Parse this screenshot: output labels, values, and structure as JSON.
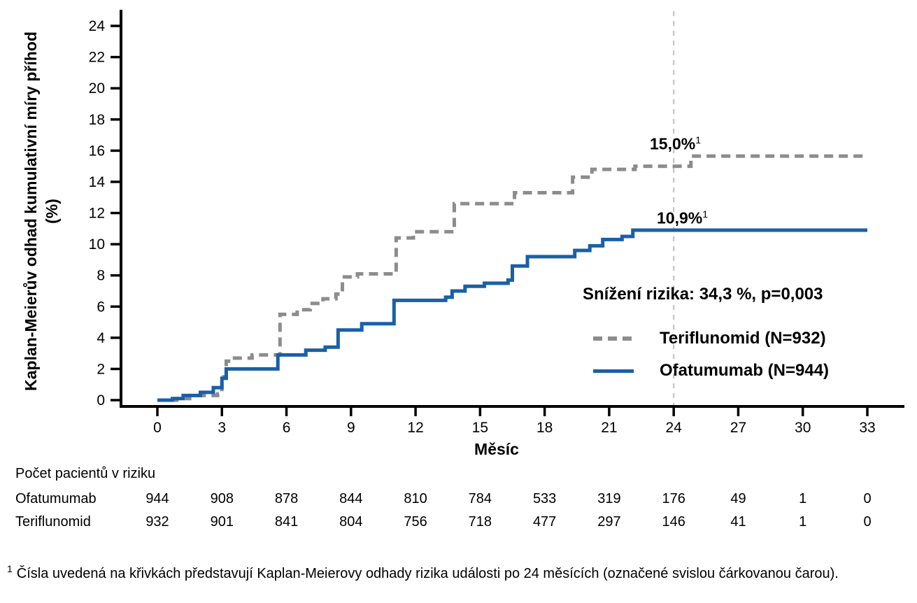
{
  "chart_data": {
    "type": "line",
    "subtype": "kaplan-meier-step",
    "title": "",
    "xlabel": "Měsíc",
    "ylabel_line1": "Kaplan-Meierův odhad kumulativní míry příhod",
    "ylabel_line2": "(%)",
    "x_ticks": [
      0,
      3,
      6,
      9,
      12,
      15,
      18,
      21,
      24,
      27,
      30,
      33
    ],
    "y_ticks": [
      0,
      2,
      4,
      6,
      8,
      10,
      12,
      14,
      16,
      18,
      20,
      22,
      24
    ],
    "xlim": [
      0,
      33
    ],
    "ylim": [
      0,
      24
    ],
    "grid": false,
    "reference_line": {
      "x": 24,
      "style": "dashed",
      "color": "#BFBFBF"
    },
    "series": [
      {
        "name": "Teriflunomid (N=932)",
        "color": "#8C8C8C",
        "dashed": true,
        "km_estimate_at_24_months": "15,0%",
        "points": [
          [
            0,
            0
          ],
          [
            0.9,
            0.1
          ],
          [
            1.5,
            0.3
          ],
          [
            2.8,
            0.4
          ],
          [
            3.0,
            1.5
          ],
          [
            3.2,
            2.5
          ],
          [
            3.5,
            2.7
          ],
          [
            4.4,
            2.9
          ],
          [
            5.7,
            5.5
          ],
          [
            6.5,
            5.8
          ],
          [
            7.1,
            6.2
          ],
          [
            7.7,
            6.5
          ],
          [
            8.3,
            6.8
          ],
          [
            8.6,
            7.9
          ],
          [
            9.3,
            8.1
          ],
          [
            11.1,
            10.4
          ],
          [
            11.9,
            10.8
          ],
          [
            13.8,
            12.6
          ],
          [
            16.6,
            13.3
          ],
          [
            19.3,
            14.3
          ],
          [
            20.2,
            14.8
          ],
          [
            22.2,
            15.0
          ],
          [
            24.8,
            15.65
          ],
          [
            33,
            15.65
          ]
        ]
      },
      {
        "name": "Ofatumumab (N=944)",
        "color": "#1A5FA8",
        "dashed": false,
        "km_estimate_at_24_months": "10,9%",
        "points": [
          [
            0,
            0
          ],
          [
            0.7,
            0.1
          ],
          [
            1.2,
            0.3
          ],
          [
            2.0,
            0.5
          ],
          [
            2.6,
            0.8
          ],
          [
            3.0,
            1.4
          ],
          [
            3.2,
            2.0
          ],
          [
            5.6,
            2.9
          ],
          [
            6.9,
            3.2
          ],
          [
            7.8,
            3.4
          ],
          [
            8.4,
            4.5
          ],
          [
            9.5,
            4.9
          ],
          [
            11.0,
            6.4
          ],
          [
            13.4,
            6.6
          ],
          [
            13.7,
            7.0
          ],
          [
            14.3,
            7.3
          ],
          [
            15.2,
            7.5
          ],
          [
            16.3,
            7.7
          ],
          [
            16.5,
            8.6
          ],
          [
            17.2,
            9.2
          ],
          [
            19.4,
            9.6
          ],
          [
            20.1,
            9.9
          ],
          [
            20.7,
            10.3
          ],
          [
            21.6,
            10.5
          ],
          [
            22.1,
            10.9
          ],
          [
            33,
            10.9
          ]
        ]
      }
    ],
    "legend_position": "right-middle"
  },
  "axis": {
    "x_title": "Měsíc",
    "y_title_line1": "Kaplan-Meierův odhad kumulativní míry příhod",
    "y_title_line2": "(%)"
  },
  "annotations": {
    "teriflunomid": {
      "value": "15,0%",
      "sup": "1"
    },
    "ofatumumab": {
      "value": "10,9%",
      "sup": "1"
    }
  },
  "legend": {
    "title": "Snížení rizika: 34,3 %, p=0,003",
    "items": [
      {
        "label": "Teriflunomid (N=932)",
        "swatch": "dashed-gray-line"
      },
      {
        "label": "Ofatumumab (N=944)",
        "swatch": "solid-blue-line"
      }
    ]
  },
  "risk_table": {
    "title": "Počet pacientů v riziku",
    "months": [
      0,
      3,
      6,
      9,
      12,
      15,
      18,
      21,
      24,
      27,
      30,
      33
    ],
    "rows": [
      {
        "label": "Ofatumumab",
        "counts": [
          944,
          908,
          878,
          844,
          810,
          784,
          533,
          319,
          176,
          49,
          1,
          0
        ]
      },
      {
        "label": "Teriflunomid",
        "counts": [
          932,
          901,
          841,
          804,
          756,
          718,
          477,
          297,
          146,
          41,
          1,
          0
        ]
      }
    ]
  },
  "footnote": {
    "marker": "1",
    "text": "Čísla uvedená na křivkách představují Kaplan-Meierovy odhady rizika události po 24 měsících (označené svislou čárkovanou čarou)."
  },
  "colors": {
    "ofatumumab_blue": "#1A5FA8",
    "teriflunomid_gray": "#8C8C8C",
    "reference_line_gray": "#BFBFBF",
    "axis_black": "#000000"
  }
}
